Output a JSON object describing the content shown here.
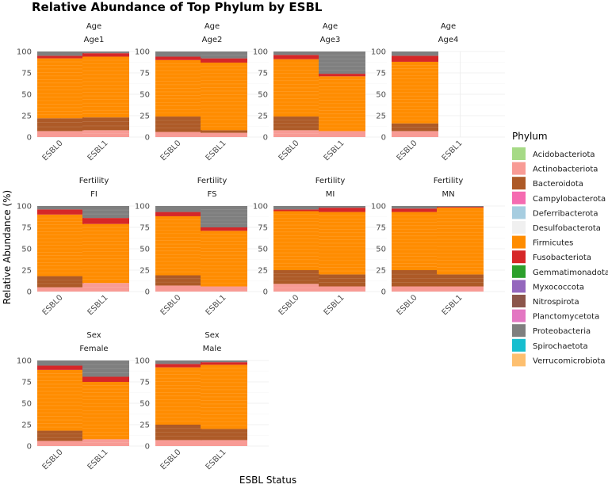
{
  "chart_data": {
    "type": "stacked-bar",
    "title": "Relative Abundance of Top Phylum by ESBL",
    "xlabel": "ESBL Status",
    "ylabel": "Relative Abundance (%)",
    "ylim": [
      0,
      100
    ],
    "yticks": [
      0,
      25,
      50,
      75,
      100
    ],
    "categories": [
      "ESBL0",
      "ESBL1"
    ],
    "legend": {
      "title": "Phylum",
      "position": "right"
    },
    "phyla": [
      {
        "name": "Acidobacteriota",
        "color": "#A6DA86"
      },
      {
        "name": "Actinobacteriota",
        "color": "#F89B95"
      },
      {
        "name": "Bacteroidota",
        "color": "#AD5A27"
      },
      {
        "name": "Campylobacterota",
        "color": "#F56BB1"
      },
      {
        "name": "Deferribacterota",
        "color": "#A6CDE0"
      },
      {
        "name": "Desulfobacterota",
        "color": "#F0F0F0"
      },
      {
        "name": "Firmicutes",
        "color": "#FF8C00"
      },
      {
        "name": "Fusobacteriota",
        "color": "#D62728"
      },
      {
        "name": "Gemmatimonadota",
        "color": "#2CA02C"
      },
      {
        "name": "Myxococcota",
        "color": "#9467BD"
      },
      {
        "name": "Nitrospirota",
        "color": "#8C564B"
      },
      {
        "name": "Planctomycetota",
        "color": "#E377C2"
      },
      {
        "name": "Proteobacteria",
        "color": "#7F7F7F"
      },
      {
        "name": "Spirochaetota",
        "color": "#17BECF"
      },
      {
        "name": "Verrucomicrobiota",
        "color": "#FDBF6F"
      }
    ],
    "stack_order": [
      "Actinobacteriota",
      "Bacteroidota",
      "Firmicutes",
      "Fusobacteriota",
      "Proteobacteria"
    ],
    "panels": [
      {
        "strip1": "Age",
        "strip2": "Age1",
        "bars": [
          {
            "category": "ESBL0",
            "values": {
              "Actinobacteriota": 7,
              "Bacteroidota": 15,
              "Firmicutes": 70,
              "Fusobacteriota": 3,
              "Proteobacteria": 5
            }
          },
          {
            "category": "ESBL1",
            "values": {
              "Actinobacteriota": 8,
              "Bacteroidota": 15,
              "Firmicutes": 71,
              "Fusobacteriota": 4,
              "Proteobacteria": 2
            }
          }
        ]
      },
      {
        "strip1": "Age",
        "strip2": "Age2",
        "bars": [
          {
            "category": "ESBL0",
            "values": {
              "Actinobacteriota": 6,
              "Bacteroidota": 18,
              "Firmicutes": 66,
              "Fusobacteriota": 4,
              "Proteobacteria": 6
            }
          },
          {
            "category": "ESBL1",
            "values": {
              "Actinobacteriota": 5,
              "Bacteroidota": 3,
              "Firmicutes": 79,
              "Fusobacteriota": 5,
              "Proteobacteria": 8
            }
          }
        ]
      },
      {
        "strip1": "Age",
        "strip2": "Age3",
        "bars": [
          {
            "category": "ESBL0",
            "values": {
              "Actinobacteriota": 8,
              "Bacteroidota": 16,
              "Firmicutes": 67,
              "Fusobacteriota": 5,
              "Proteobacteria": 4
            }
          },
          {
            "category": "ESBL1",
            "values": {
              "Actinobacteriota": 7,
              "Bacteroidota": 0,
              "Firmicutes": 64,
              "Fusobacteriota": 3,
              "Proteobacteria": 26
            }
          }
        ]
      },
      {
        "strip1": "Age",
        "strip2": "Age4",
        "bars": [
          {
            "category": "ESBL0",
            "values": {
              "Actinobacteriota": 7,
              "Bacteroidota": 9,
              "Firmicutes": 72,
              "Fusobacteriota": 7,
              "Proteobacteria": 5
            }
          }
        ]
      },
      {
        "strip1": "Fertility",
        "strip2": "FI",
        "bars": [
          {
            "category": "ESBL0",
            "values": {
              "Actinobacteriota": 5,
              "Bacteroidota": 13,
              "Firmicutes": 72,
              "Fusobacteriota": 6,
              "Proteobacteria": 4
            }
          },
          {
            "category": "ESBL1",
            "values": {
              "Actinobacteriota": 10,
              "Bacteroidota": 0,
              "Firmicutes": 69,
              "Fusobacteriota": 7,
              "Proteobacteria": 14
            }
          }
        ]
      },
      {
        "strip1": "Fertility",
        "strip2": "FS",
        "bars": [
          {
            "category": "ESBL0",
            "values": {
              "Actinobacteriota": 7,
              "Bacteroidota": 12,
              "Firmicutes": 69,
              "Fusobacteriota": 5,
              "Proteobacteria": 7
            }
          },
          {
            "category": "ESBL1",
            "values": {
              "Actinobacteriota": 6,
              "Bacteroidota": 0,
              "Firmicutes": 65,
              "Fusobacteriota": 4,
              "Proteobacteria": 25
            }
          }
        ]
      },
      {
        "strip1": "Fertility",
        "strip2": "MI",
        "bars": [
          {
            "category": "ESBL0",
            "values": {
              "Actinobacteriota": 9,
              "Bacteroidota": 16,
              "Firmicutes": 69,
              "Fusobacteriota": 2,
              "Proteobacteria": 4
            }
          },
          {
            "category": "ESBL1",
            "values": {
              "Actinobacteriota": 6,
              "Bacteroidota": 14,
              "Firmicutes": 73,
              "Fusobacteriota": 5,
              "Proteobacteria": 2
            }
          }
        ]
      },
      {
        "strip1": "Fertility",
        "strip2": "MN",
        "bars": [
          {
            "category": "ESBL0",
            "values": {
              "Actinobacteriota": 6,
              "Bacteroidota": 19,
              "Firmicutes": 68,
              "Fusobacteriota": 4,
              "Proteobacteria": 3
            }
          },
          {
            "category": "ESBL1",
            "values": {
              "Actinobacteriota": 6,
              "Bacteroidota": 14,
              "Firmicutes": 78,
              "Fusobacteriota": 1,
              "Proteobacteria": 1
            }
          }
        ]
      },
      {
        "strip1": "Sex",
        "strip2": "Female",
        "bars": [
          {
            "category": "ESBL0",
            "values": {
              "Actinobacteriota": 6,
              "Bacteroidota": 12,
              "Firmicutes": 71,
              "Fusobacteriota": 5,
              "Proteobacteria": 6
            }
          },
          {
            "category": "ESBL1",
            "values": {
              "Actinobacteriota": 8,
              "Bacteroidota": 0,
              "Firmicutes": 67,
              "Fusobacteriota": 6,
              "Proteobacteria": 19
            }
          }
        ]
      },
      {
        "strip1": "Sex",
        "strip2": "Male",
        "bars": [
          {
            "category": "ESBL0",
            "values": {
              "Actinobacteriota": 7,
              "Bacteroidota": 18,
              "Firmicutes": 67,
              "Fusobacteriota": 4,
              "Proteobacteria": 4
            }
          },
          {
            "category": "ESBL1",
            "values": {
              "Actinobacteriota": 7,
              "Bacteroidota": 13,
              "Firmicutes": 75,
              "Fusobacteriota": 3,
              "Proteobacteria": 2
            }
          }
        ]
      }
    ]
  }
}
